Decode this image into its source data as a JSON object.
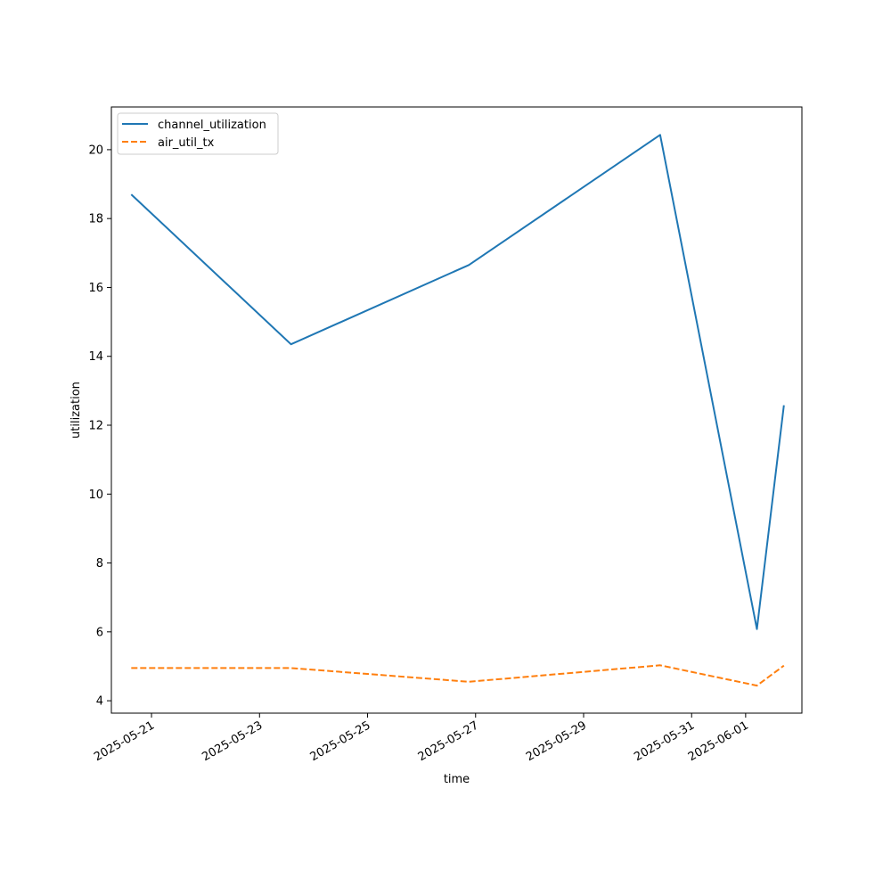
{
  "chart_data": {
    "type": "line",
    "title": "",
    "xlabel": "time",
    "ylabel": "utilization",
    "x": [
      "2025-05-20 15:00",
      "2025-05-23 14:00",
      "2025-05-26 21:00",
      "2025-05-30 10:00",
      "2025-06-01 05:00",
      "2025-06-01 17:00"
    ],
    "series": [
      {
        "name": "channel_utilization",
        "values": [
          18.7,
          14.35,
          16.65,
          20.43,
          6.08,
          12.58
        ],
        "color": "#1f77b4",
        "line_style": "solid"
      },
      {
        "name": "air_util_tx",
        "values": [
          4.95,
          4.95,
          4.55,
          5.03,
          4.44,
          5.02
        ],
        "color": "#ff7f0e",
        "line_style": "dashed"
      }
    ],
    "xlim": [
      "2025-05-20 06:10",
      "2025-06-02 01:00"
    ],
    "ylim": [
      3.64,
      21.24
    ],
    "xticks": [
      {
        "date": "2025-05-21",
        "label": "2025-05-21"
      },
      {
        "date": "2025-05-23",
        "label": "2025-05-23"
      },
      {
        "date": "2025-05-25",
        "label": "2025-05-25"
      },
      {
        "date": "2025-05-27",
        "label": "2025-05-27"
      },
      {
        "date": "2025-05-29",
        "label": "2025-05-29"
      },
      {
        "date": "2025-05-31",
        "label": "2025-05-31"
      },
      {
        "date": "2025-06-01",
        "label": "2025-06-01"
      }
    ],
    "yticks": [
      4,
      6,
      8,
      10,
      12,
      14,
      16,
      18,
      20
    ],
    "x_scale": "time",
    "grid": false,
    "legend_position": "top-left"
  }
}
